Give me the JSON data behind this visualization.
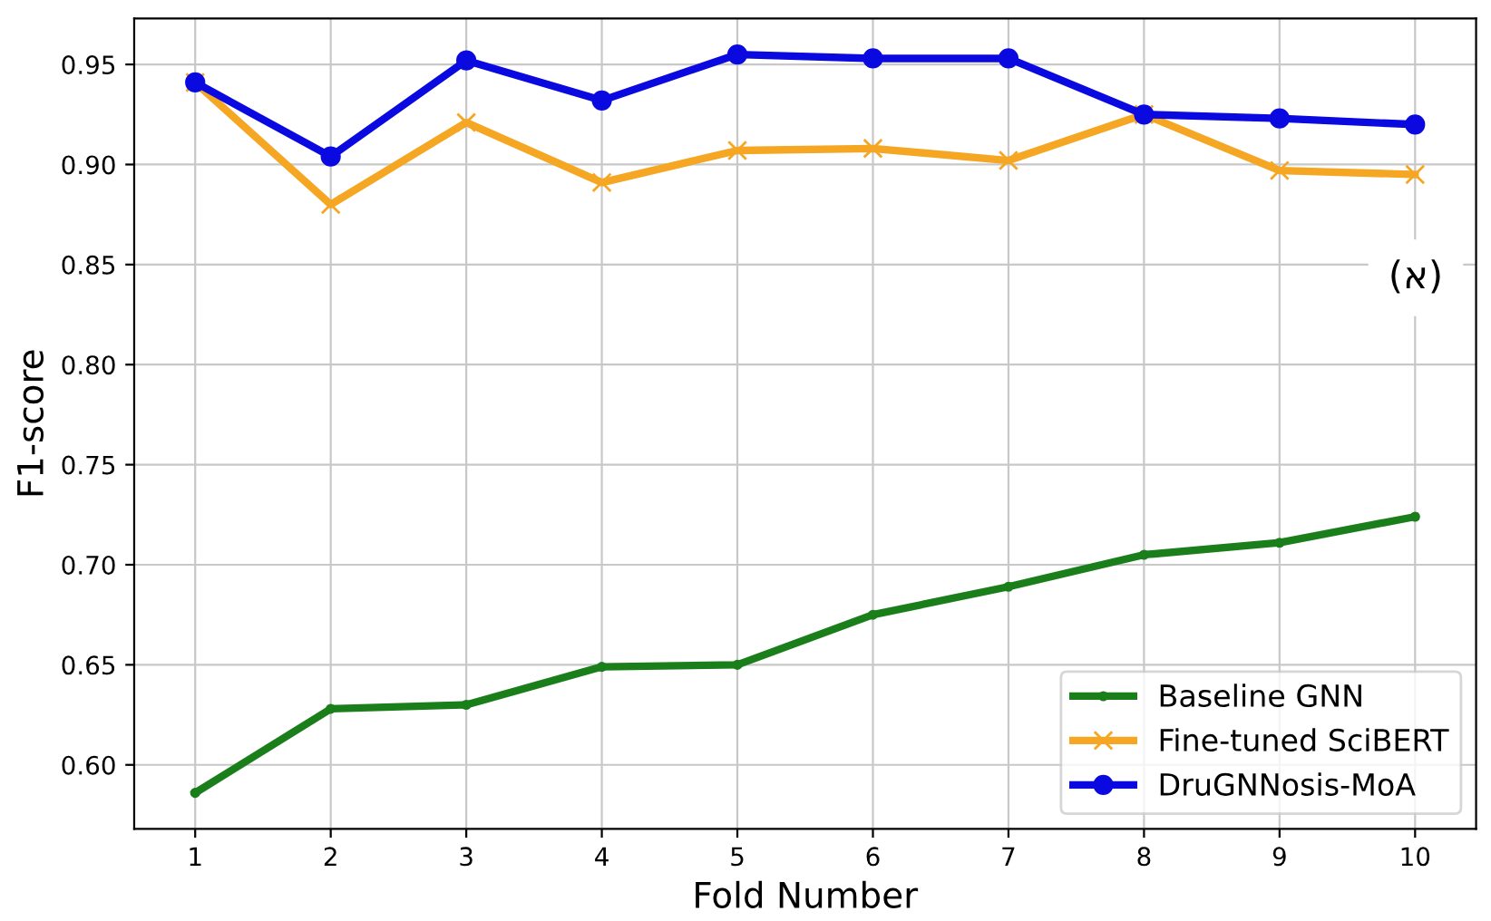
{
  "chart_data": {
    "type": "line",
    "xlabel": "Fold Number",
    "ylabel": "F1-score",
    "x": [
      1,
      2,
      3,
      4,
      5,
      6,
      7,
      8,
      9,
      10
    ],
    "series": [
      {
        "name": "Baseline GNN",
        "color": "#1a7f1a",
        "marker": "circle",
        "values": [
          0.586,
          0.628,
          0.63,
          0.649,
          0.65,
          0.675,
          0.689,
          0.705,
          0.711,
          0.724
        ]
      },
      {
        "name": "Fine-tuned SciBERT",
        "color": "#f5a623",
        "marker": "cross",
        "values": [
          0.941,
          0.88,
          0.921,
          0.891,
          0.907,
          0.908,
          0.902,
          0.925,
          0.897,
          0.895
        ]
      },
      {
        "name": "DruGNNosis-MoA",
        "color": "#0a0ae0",
        "marker": "circle",
        "values": [
          0.941,
          0.904,
          0.952,
          0.932,
          0.955,
          0.953,
          0.953,
          0.925,
          0.923,
          0.92
        ]
      }
    ],
    "xlim": [
      0.55,
      10.45
    ],
    "xticks": [
      1,
      2,
      3,
      4,
      5,
      6,
      7,
      8,
      9,
      10
    ],
    "ylim": [
      0.568,
      0.973
    ],
    "yticks": [
      {
        "value": 0.6,
        "label": "0.60"
      },
      {
        "value": 0.65,
        "label": "0.65"
      },
      {
        "value": 0.7,
        "label": "0.70"
      },
      {
        "value": 0.75,
        "label": "0.75"
      },
      {
        "value": 0.8,
        "label": "0.80"
      },
      {
        "value": 0.85,
        "label": "0.85"
      },
      {
        "value": 0.9,
        "label": "0.90"
      },
      {
        "value": 0.95,
        "label": "0.95"
      }
    ],
    "grid": true,
    "legend": "bottom right",
    "line_style": "solid",
    "annotations": [
      "(א)"
    ]
  }
}
